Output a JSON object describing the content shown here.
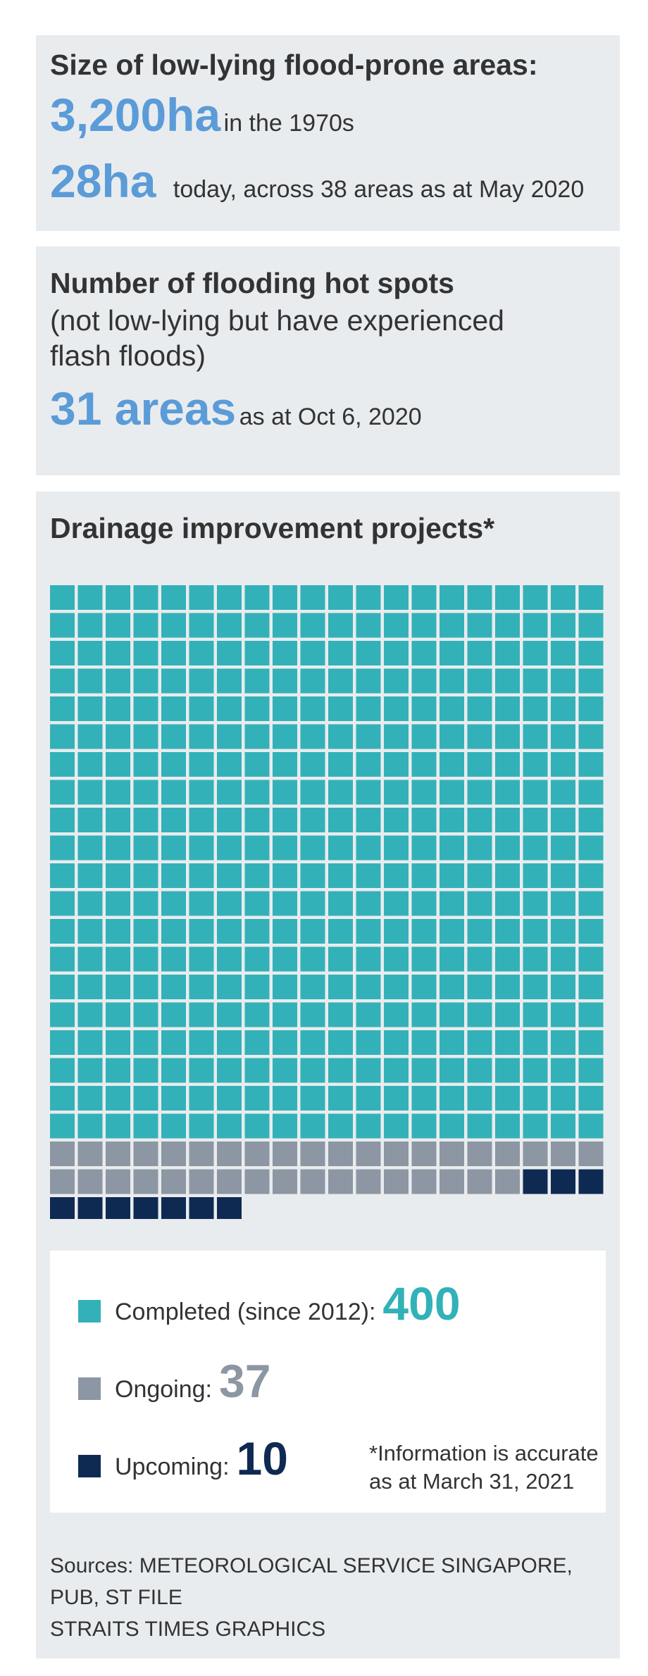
{
  "lowlying": {
    "title": "Size of low-lying flood-prone areas:",
    "then_value": "3,200ha",
    "then_text": "in the 1970s",
    "now_value": "28ha",
    "now_text": "today, across 38 areas as at May 2020"
  },
  "hotspots": {
    "title": "Number of flooding hot spots",
    "subtitle_line1": "(not low-lying but have experienced",
    "subtitle_line2": "flash floods)",
    "value": "31 areas",
    "value_text": "as at Oct 6, 2020"
  },
  "drainage": {
    "title": "Drainage improvement projects*",
    "footnote_line1": "*Information is accurate",
    "footnote_line2": "as at March 31, 2021"
  },
  "chart_data": {
    "type": "waffle",
    "title": "Drainage improvement projects*",
    "columns": 20,
    "series": [
      {
        "name": "Completed (since 2012):",
        "value": 400,
        "color": "#33b1b8"
      },
      {
        "name": "Ongoing:",
        "value": 37,
        "color": "#8d96a3"
      },
      {
        "name": "Upcoming:",
        "value": 10,
        "color": "#0e2a52"
      }
    ]
  },
  "legend": {
    "completed_label": "Completed (since 2012):",
    "completed_value": "400",
    "ongoing_label": "Ongoing:",
    "ongoing_value": "37",
    "upcoming_label": "Upcoming:",
    "upcoming_value": "10"
  },
  "colors": {
    "completed": "#33b1b8",
    "ongoing": "#8d96a3",
    "upcoming": "#0e2a52",
    "accent_blue": "#5b9bd8"
  },
  "sources": {
    "line1": "Sources: METEOROLOGICAL SERVICE SINGAPORE,",
    "line2": "PUB, ST FILE",
    "line3": "STRAITS TIMES GRAPHICS"
  }
}
